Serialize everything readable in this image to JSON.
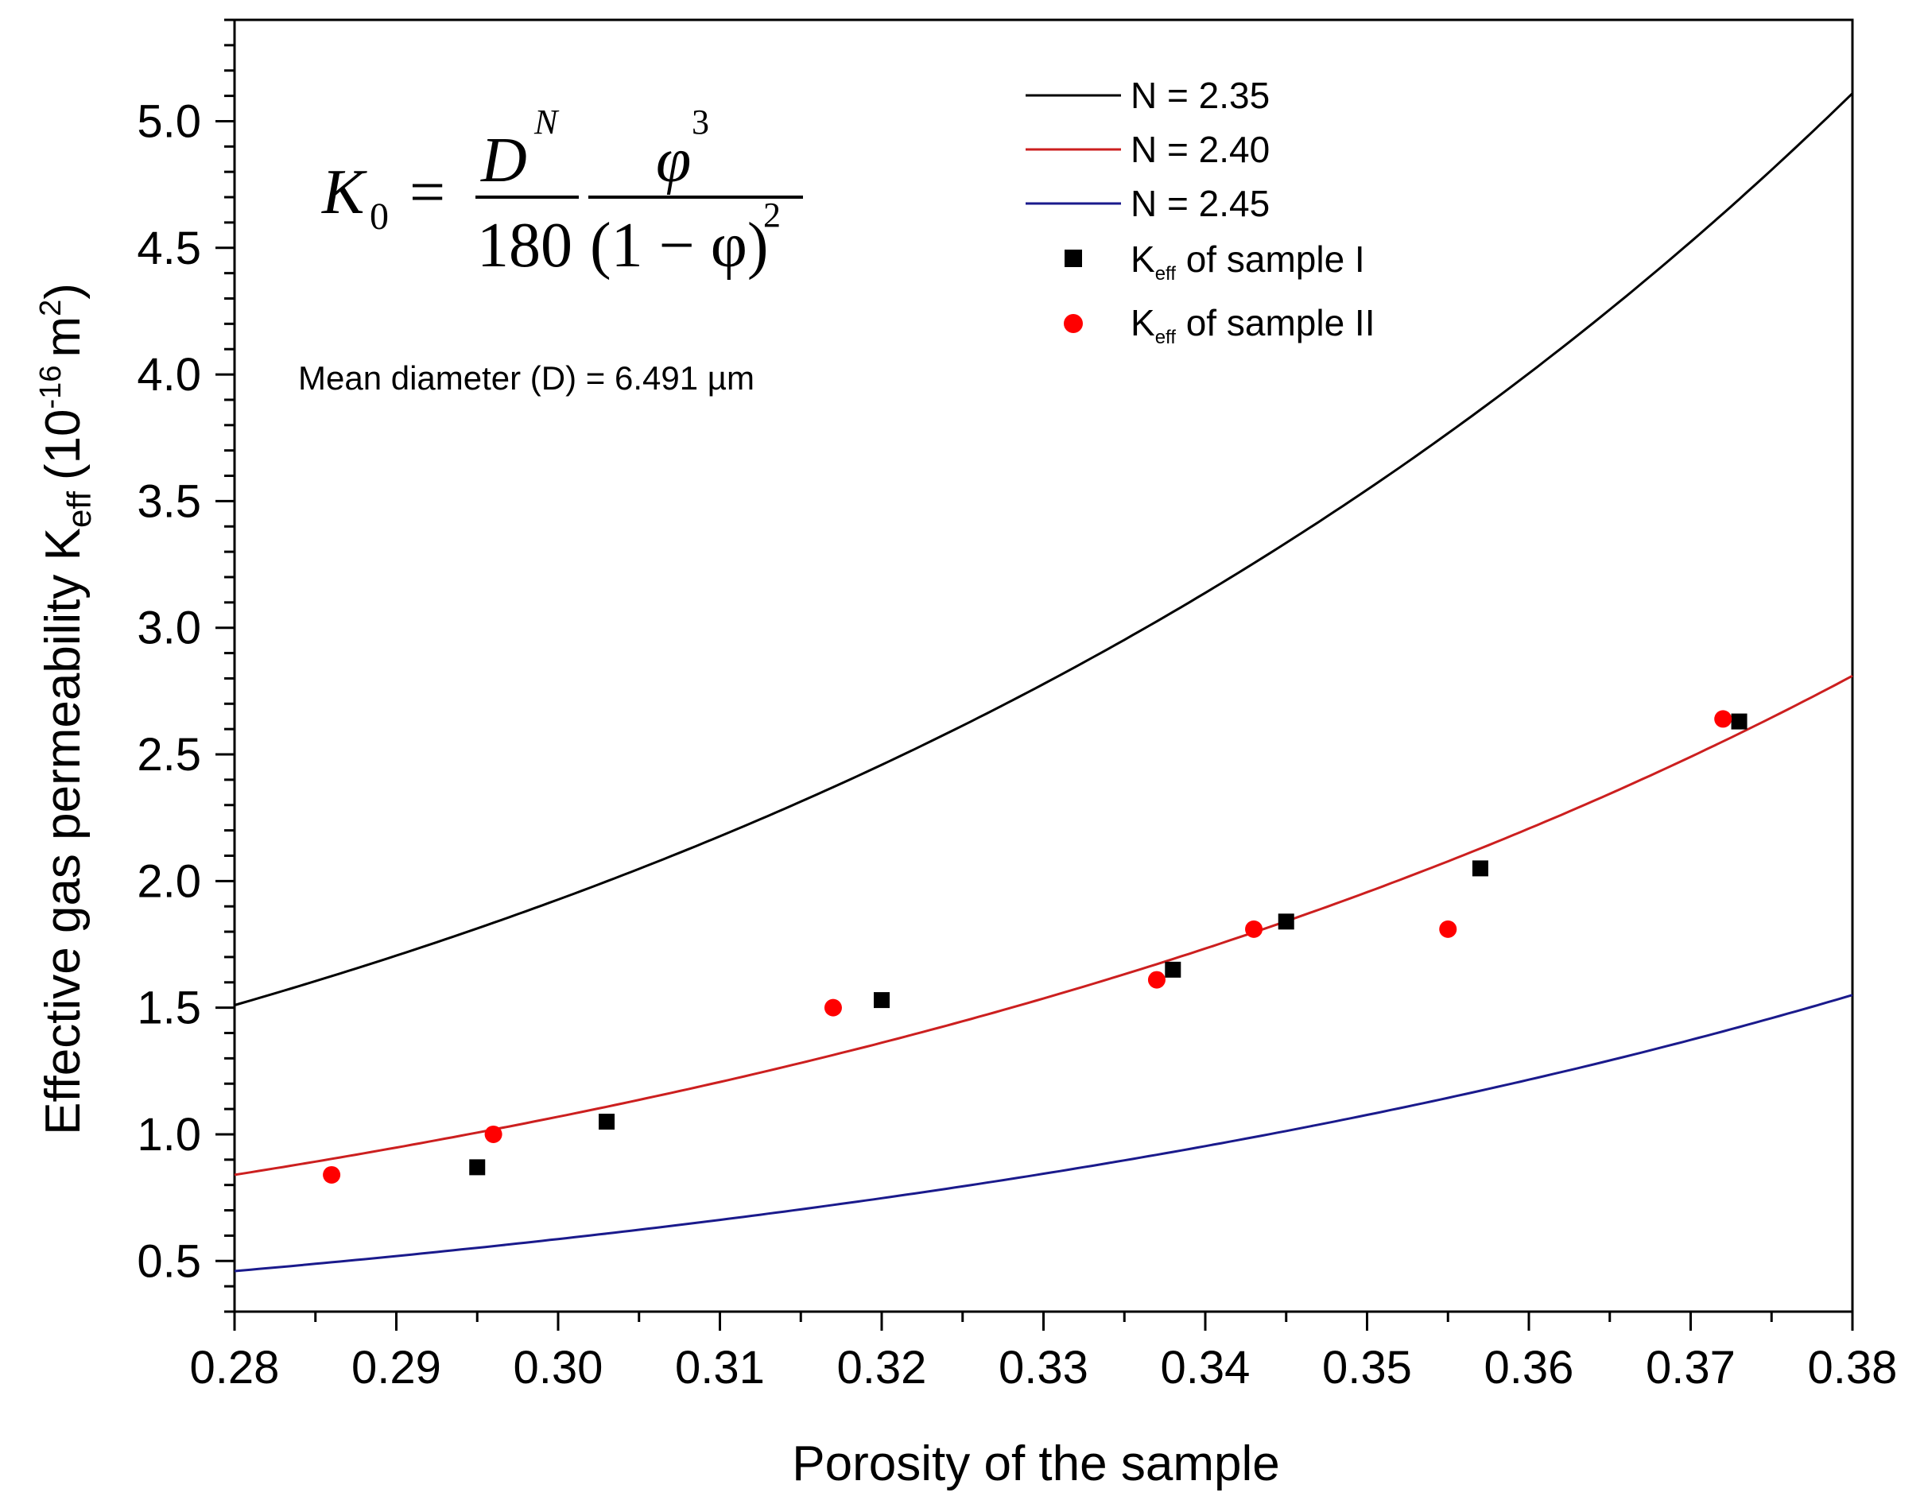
{
  "chart_data": {
    "type": "scatter",
    "title": "",
    "xlabel": "Porosity of the sample",
    "ylabel": {
      "main": "Effective gas permeability K",
      "sub": "eff",
      "unit_open": "(10",
      "unit_exp": "-16",
      "unit_mid": "m",
      "unit_exp2": "2",
      "unit_close": ")"
    },
    "xlim": [
      0.28,
      0.38
    ],
    "ylim": [
      0.3,
      5.4
    ],
    "xticks": [
      0.28,
      0.29,
      0.3,
      0.31,
      0.32,
      0.33,
      0.34,
      0.35,
      0.36,
      0.37,
      0.38
    ],
    "xtick_labels": [
      "0.28",
      "0.29",
      "0.30",
      "0.31",
      "0.32",
      "0.33",
      "0.34",
      "0.35",
      "0.36",
      "0.37",
      "0.38"
    ],
    "yticks": [
      0.5,
      1.0,
      1.5,
      2.0,
      2.5,
      3.0,
      3.5,
      4.0,
      4.5,
      5.0
    ],
    "ytick_labels": [
      "0.5",
      "1.0",
      "1.5",
      "2.0",
      "2.5",
      "3.0",
      "3.5",
      "4.0",
      "4.5",
      "5.0"
    ],
    "legend_position": "top-right",
    "series": [
      {
        "name": "N = 2.35",
        "kind": "line",
        "color": "#000000",
        "x": [
          0.28,
          0.29,
          0.3,
          0.31,
          0.32,
          0.33,
          0.34,
          0.35,
          0.36,
          0.37,
          0.38
        ],
        "values": [
          1.51,
          1.75,
          2.01,
          2.31,
          2.63,
          3.0,
          3.4,
          3.85,
          4.05,
          4.53,
          5.11
        ]
      },
      {
        "name": "N = 2.40",
        "kind": "line",
        "color": "#cc1f1f",
        "x": [
          0.28,
          0.29,
          0.3,
          0.31,
          0.32,
          0.33,
          0.34,
          0.35,
          0.36,
          0.37,
          0.38
        ],
        "values": [
          0.84,
          0.96,
          1.1,
          1.25,
          1.42,
          1.61,
          1.82,
          2.05,
          2.16,
          2.49,
          2.81
        ]
      },
      {
        "name": "N = 2.45",
        "kind": "line",
        "color": "#1a1a8c",
        "x": [
          0.28,
          0.29,
          0.3,
          0.31,
          0.32,
          0.33,
          0.34,
          0.35,
          0.36,
          0.37,
          0.38
        ],
        "values": [
          0.46,
          0.53,
          0.6,
          0.68,
          0.77,
          0.86,
          0.97,
          1.09,
          1.22,
          1.37,
          1.55
        ]
      },
      {
        "name": "Keff of sample I",
        "kind": "square",
        "color": "#000000",
        "x": [
          0.295,
          0.303,
          0.32,
          0.338,
          0.345,
          0.357,
          0.373
        ],
        "values": [
          0.87,
          1.05,
          1.53,
          1.65,
          1.84,
          2.05,
          2.63
        ]
      },
      {
        "name": "Keff of sample II",
        "kind": "circle",
        "color": "#ff0000",
        "x": [
          0.286,
          0.296,
          0.317,
          0.337,
          0.343,
          0.355,
          0.372
        ],
        "values": [
          0.84,
          1.0,
          1.5,
          1.61,
          1.81,
          1.81,
          2.64
        ]
      }
    ],
    "legend": {
      "line_labels": [
        "N = 2.35",
        "N = 2.40",
        "N = 2.45"
      ],
      "marker_labels": [
        {
          "k": "K",
          "sub": "eff",
          "rest": " of sample I"
        },
        {
          "k": "K",
          "sub": "eff",
          "rest": " of sample II"
        }
      ]
    },
    "annotations": {
      "formula": {
        "lhs_var": "K",
        "lhs_sub": "0",
        "equals": "=",
        "num1": "D",
        "num1_sup": "N",
        "den1": "180",
        "num2": "φ",
        "num2_sup": "3",
        "den2": "(1 − φ)",
        "den2_sup": "2"
      },
      "mean_diameter": "Mean diameter (D) = 6.491 µm"
    }
  }
}
